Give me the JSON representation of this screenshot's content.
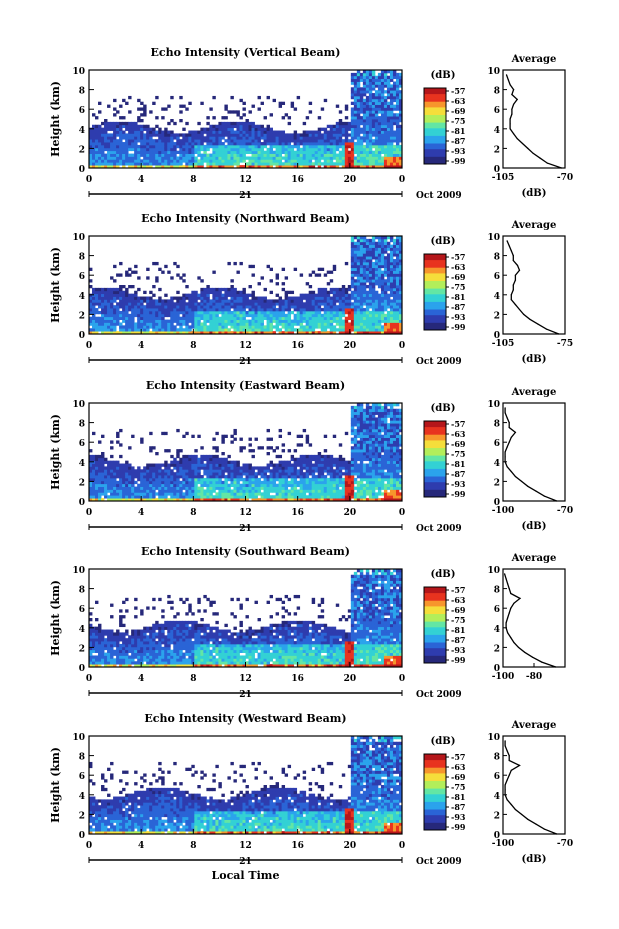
{
  "chart_data": [
    {
      "type": "heatmap",
      "title": "Echo Intensity (Vertical Beam)",
      "ylabel": "Height (km)",
      "ylim": [
        0,
        10
      ],
      "xlim": [
        0,
        24
      ],
      "x_ticks": [
        "0",
        "4",
        "8",
        "12",
        "16",
        "20",
        "0"
      ],
      "y_ticks": [
        "0",
        "2",
        "4",
        "6",
        "8",
        "10"
      ],
      "date_day": "21",
      "date_month": "Oct 2009",
      "colorbar_unit": "(dB)",
      "colorbar_ticks": [
        "-57",
        "-63",
        "-69",
        "-75",
        "-81",
        "-87",
        "-93",
        "-99"
      ],
      "profile": {
        "title": "Average",
        "xlabel": "(dB)",
        "xlim": [
          -105,
          -70
        ],
        "x_ticks": [
          "-105",
          "-70"
        ],
        "y_ticks": [
          "0",
          "2",
          "4",
          "6",
          "8",
          "10"
        ],
        "heights": [
          0,
          0.5,
          1,
          1.5,
          2,
          2.5,
          3,
          3.5,
          4,
          4.5,
          5,
          5.5,
          6,
          6.5,
          7,
          7.5,
          8,
          8.5,
          9,
          9.5
        ],
        "values": [
          -72,
          -80,
          -84,
          -88,
          -91,
          -94,
          -97,
          -99,
          -101,
          -101,
          -101,
          -100,
          -100,
          -99,
          -97,
          -100,
          -99,
          -101,
          -102,
          -103
        ]
      }
    },
    {
      "type": "heatmap",
      "title": "Echo Intensity (Northward Beam)",
      "ylabel": "Height (km)",
      "ylim": [
        0,
        10
      ],
      "xlim": [
        0,
        24
      ],
      "x_ticks": [
        "0",
        "4",
        "8",
        "12",
        "16",
        "20",
        "0"
      ],
      "y_ticks": [
        "0",
        "2",
        "4",
        "6",
        "8",
        "10"
      ],
      "date_day": "21",
      "date_month": "Oct 2009",
      "colorbar_unit": "(dB)",
      "colorbar_ticks": [
        "-57",
        "-63",
        "-69",
        "-75",
        "-81",
        "-87",
        "-93",
        "-99"
      ],
      "profile": {
        "title": "Average",
        "xlabel": "(dB)",
        "xlim": [
          -105,
          -75
        ],
        "x_ticks": [
          "-105",
          "-75"
        ],
        "y_ticks": [
          "0",
          "2",
          "4",
          "6",
          "8",
          "10"
        ],
        "heights": [
          0,
          0.5,
          1,
          1.5,
          2,
          2.5,
          3,
          3.5,
          4,
          4.5,
          5,
          5.5,
          6,
          6.5,
          7,
          7.5,
          8,
          8.5,
          9,
          9.5
        ],
        "values": [
          -78,
          -84,
          -88,
          -92,
          -95,
          -97,
          -99,
          -101,
          -101,
          -100,
          -100,
          -99,
          -99,
          -97,
          -98,
          -100,
          -100,
          -101,
          -102,
          -103
        ]
      }
    },
    {
      "type": "heatmap",
      "title": "Echo Intensity (Eastward Beam)",
      "ylabel": "Height (km)",
      "ylim": [
        0,
        10
      ],
      "xlim": [
        0,
        24
      ],
      "x_ticks": [
        "0",
        "4",
        "8",
        "12",
        "16",
        "20",
        "0"
      ],
      "y_ticks": [
        "0",
        "2",
        "4",
        "6",
        "8",
        "10"
      ],
      "date_day": "21",
      "date_month": "Oct 2009",
      "colorbar_unit": "(dB)",
      "colorbar_ticks": [
        "-57",
        "-63",
        "-69",
        "-75",
        "-81",
        "-87",
        "-93",
        "-99"
      ],
      "profile": {
        "title": "Average",
        "xlabel": "(dB)",
        "xlim": [
          -100,
          -70
        ],
        "x_ticks": [
          "-100",
          "-70"
        ],
        "y_ticks": [
          "0",
          "2",
          "4",
          "6",
          "8",
          "10"
        ],
        "heights": [
          0,
          0.5,
          1,
          1.5,
          2,
          2.5,
          3,
          3.5,
          4,
          4.5,
          5,
          5.5,
          6,
          6.5,
          7,
          7.5,
          8,
          8.5,
          9,
          9.5
        ],
        "values": [
          -74,
          -80,
          -84,
          -88,
          -91,
          -94,
          -96,
          -98,
          -99,
          -99,
          -99,
          -98,
          -97,
          -96,
          -94,
          -97,
          -97,
          -98,
          -99,
          -99
        ]
      }
    },
    {
      "type": "heatmap",
      "title": "Echo Intensity (Southward Beam)",
      "ylabel": "Height (km)",
      "ylim": [
        0,
        10
      ],
      "xlim": [
        0,
        24
      ],
      "x_ticks": [
        "0",
        "4",
        "8",
        "12",
        "16",
        "20",
        "0"
      ],
      "y_ticks": [
        "0",
        "2",
        "4",
        "6",
        "8",
        "10"
      ],
      "date_day": "21",
      "date_month": "Oct 2009",
      "colorbar_unit": "(dB)",
      "colorbar_ticks": [
        "-57",
        "-63",
        "-69",
        "-75",
        "-81",
        "-87",
        "-93",
        "-99"
      ],
      "profile": {
        "title": "Average",
        "xlabel": "",
        "xlim": [
          -100,
          -60
        ],
        "x_ticks": [
          "-100",
          "-80"
        ],
        "y_ticks": [
          "0",
          "2",
          "4",
          "6",
          "8",
          "10"
        ],
        "heights": [
          0,
          0.5,
          1,
          1.5,
          2,
          2.5,
          3,
          3.5,
          4,
          4.5,
          5,
          5.5,
          6,
          6.5,
          7,
          7.5,
          8,
          8.5,
          9,
          9.5
        ],
        "values": [
          -66,
          -75,
          -81,
          -86,
          -90,
          -93,
          -95,
          -97,
          -98,
          -98,
          -97,
          -96,
          -95,
          -93,
          -89,
          -95,
          -96,
          -97,
          -98,
          -99
        ]
      }
    },
    {
      "type": "heatmap",
      "title": "Echo Intensity (Westward Beam)",
      "ylabel": "Height (km)",
      "ylim": [
        0,
        10
      ],
      "xlim": [
        0,
        24
      ],
      "x_ticks": [
        "0",
        "4",
        "8",
        "12",
        "16",
        "20",
        "0"
      ],
      "y_ticks": [
        "0",
        "2",
        "4",
        "6",
        "8",
        "10"
      ],
      "date_day": "21",
      "date_month": "Oct 2009",
      "xlabel": "Local Time",
      "colorbar_unit": "(dB)",
      "colorbar_ticks": [
        "-57",
        "-63",
        "-69",
        "-75",
        "-81",
        "-87",
        "-93",
        "-99"
      ],
      "profile": {
        "title": "Average",
        "xlabel": "(dB)",
        "xlim": [
          -100,
          -70
        ],
        "x_ticks": [
          "-100",
          "-70"
        ],
        "y_ticks": [
          "0",
          "2",
          "4",
          "6",
          "8",
          "10"
        ],
        "heights": [
          0,
          0.5,
          1,
          1.5,
          2,
          2.5,
          3,
          3.5,
          4,
          4.5,
          5,
          5.5,
          6,
          6.5,
          7,
          7.5,
          8,
          8.5,
          9,
          9.5
        ],
        "values": [
          -74,
          -80,
          -84,
          -88,
          -91,
          -94,
          -96,
          -98,
          -99,
          -99,
          -99,
          -98,
          -97,
          -96,
          -92,
          -97,
          -97,
          -98,
          -99,
          -99
        ]
      }
    }
  ],
  "colors": {
    "colormap": [
      "#26287a",
      "#2e3cae",
      "#2a64d6",
      "#2ba3ec",
      "#33d1d4",
      "#63e6a4",
      "#b3ee5a",
      "#f5de3b",
      "#f7962c",
      "#e8331f",
      "#b5161a"
    ]
  }
}
